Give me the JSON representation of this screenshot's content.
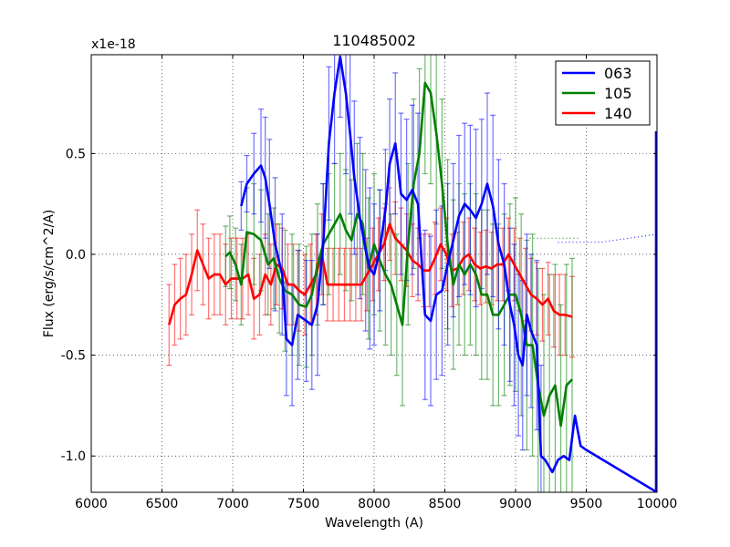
{
  "chart_data": {
    "type": "line",
    "title": "110485002",
    "xlabel": "Wavelength (A)",
    "ylabel": "Flux (erg/s/cm^2/A)",
    "y_offset_label": "x1e-18",
    "xlim": [
      6000,
      10000
    ],
    "ylim": [
      -1.18,
      0.99
    ],
    "xticks": [
      6000,
      6500,
      7000,
      7500,
      8000,
      8500,
      9000,
      9500,
      10000
    ],
    "xtick_labels": [
      "6000",
      "6500",
      "7000",
      "7500",
      "8000",
      "8500",
      "9000",
      "9500",
      "10000"
    ],
    "yticks": [
      0.5,
      0.0,
      -0.5,
      -1.0
    ],
    "ytick_labels": [
      "0.5",
      "0.0",
      "-0.5",
      "-1.0"
    ],
    "grid": true,
    "legend_position": "top-right",
    "series": [
      {
        "name": "063",
        "color": "#0000ff",
        "x": [
          7060,
          7100,
          7150,
          7200,
          7230,
          7260,
          7300,
          7350,
          7380,
          7420,
          7460,
          7520,
          7560,
          7600,
          7640,
          7680,
          7720,
          7760,
          7800,
          7830,
          7860,
          7900,
          7940,
          7970,
          8000,
          8040,
          8080,
          8110,
          8150,
          8190,
          8230,
          8270,
          8310,
          8360,
          8400,
          8440,
          8480,
          8520,
          8560,
          8600,
          8640,
          8680,
          8720,
          8760,
          8800,
          8840,
          8880,
          8920,
          8960,
          8990,
          9020,
          9050,
          9080,
          9110,
          9150,
          9180,
          9210,
          9260,
          9300,
          9340,
          9380,
          9420,
          9460,
          9500,
          10000
        ],
        "y": [
          0.24,
          0.35,
          0.4,
          0.44,
          0.38,
          0.25,
          0.05,
          -0.1,
          -0.42,
          -0.45,
          -0.3,
          -0.33,
          -0.35,
          -0.25,
          0.05,
          0.55,
          0.8,
          0.98,
          0.8,
          0.6,
          0.38,
          0.18,
          0.02,
          -0.07,
          -0.1,
          0.02,
          0.22,
          0.45,
          0.55,
          0.3,
          0.27,
          0.32,
          0.25,
          -0.3,
          -0.33,
          -0.2,
          -0.18,
          -0.05,
          0.07,
          0.19,
          0.25,
          0.22,
          0.18,
          0.25,
          0.35,
          0.24,
          0.05,
          -0.05,
          -0.25,
          -0.35,
          -0.5,
          -0.55,
          -0.3,
          -0.38,
          -0.45,
          -1.0,
          -1.02,
          -1.08,
          -1.02,
          -1.0,
          -1.02,
          -0.8,
          -0.95,
          -0.97,
          -1.18
        ],
        "err": [
          0.12,
          0.14,
          0.2,
          0.28,
          0.3,
          0.32,
          0.33,
          0.3,
          0.28,
          0.3,
          0.32,
          0.3,
          0.32,
          0.35,
          0.3,
          0.38,
          0.35,
          0.3,
          0.4,
          0.4,
          0.38,
          0.4,
          0.4,
          0.4,
          0.35,
          0.3,
          0.3,
          0.32,
          0.35,
          0.4,
          0.4,
          0.42,
          0.45,
          0.42,
          0.42,
          0.42,
          0.42,
          0.4,
          0.38,
          0.4,
          0.4,
          0.42,
          0.44,
          0.42,
          0.45,
          0.45,
          0.42,
          0.4,
          0.38,
          0.4,
          0.4,
          0.42,
          0.4,
          0.38,
          0.42,
          0.45,
          0.0,
          0.0,
          0.0,
          0.0,
          0.0,
          0.0,
          0.0,
          0.0,
          0.0
        ],
        "extension_x": [
          9300,
          9600,
          10000
        ],
        "extension_y": [
          0.06,
          0.06,
          0.1
        ]
      },
      {
        "name": "105",
        "color": "#008000",
        "x": [
          6950,
          6980,
          7020,
          7060,
          7100,
          7150,
          7200,
          7250,
          7290,
          7330,
          7370,
          7420,
          7470,
          7520,
          7560,
          7600,
          7640,
          7680,
          7720,
          7760,
          7800,
          7840,
          7880,
          7920,
          7960,
          8000,
          8040,
          8080,
          8120,
          8160,
          8200,
          8240,
          8280,
          8320,
          8360,
          8400,
          8440,
          8480,
          8520,
          8560,
          8600,
          8640,
          8680,
          8720,
          8760,
          8800,
          8840,
          8880,
          8920,
          8960,
          9000,
          9040,
          9080,
          9120,
          9160,
          9200,
          9240,
          9280,
          9320,
          9360,
          9400
        ],
        "y": [
          -0.01,
          0.01,
          -0.05,
          -0.15,
          0.11,
          0.1,
          0.07,
          -0.05,
          -0.02,
          -0.12,
          -0.18,
          -0.2,
          -0.25,
          -0.26,
          -0.2,
          -0.05,
          0.05,
          0.1,
          0.15,
          0.2,
          0.12,
          0.07,
          0.2,
          0.15,
          -0.07,
          0.05,
          -0.03,
          -0.1,
          -0.15,
          -0.25,
          -0.35,
          0.05,
          0.35,
          0.5,
          0.85,
          0.8,
          0.6,
          0.35,
          0.05,
          -0.15,
          -0.05,
          -0.1,
          -0.05,
          -0.1,
          -0.2,
          -0.2,
          -0.3,
          -0.3,
          -0.25,
          -0.2,
          -0.2,
          -0.3,
          -0.45,
          -0.45,
          -0.65,
          -0.8,
          -0.7,
          -0.65,
          -0.85,
          -0.65,
          -0.62
        ],
        "err": [
          0.15,
          0.18,
          0.18,
          0.2,
          0.22,
          0.25,
          0.25,
          0.25,
          0.25,
          0.27,
          0.3,
          0.3,
          0.3,
          0.3,
          0.3,
          0.3,
          0.3,
          0.3,
          0.3,
          0.3,
          0.3,
          0.3,
          0.35,
          0.35,
          0.35,
          0.35,
          0.35,
          0.35,
          0.35,
          0.35,
          0.4,
          0.4,
          0.42,
          0.42,
          0.45,
          0.45,
          0.45,
          0.42,
          0.42,
          0.42,
          0.4,
          0.4,
          0.4,
          0.4,
          0.42,
          0.42,
          0.45,
          0.45,
          0.45,
          0.45,
          0.48,
          0.5,
          0.52,
          0.55,
          0.58,
          0.6,
          0.6,
          0.6,
          0.6,
          0.6,
          0.6
        ],
        "extension_x": [
          9100,
          9450
        ],
        "extension_y": [
          0.08,
          0.08
        ]
      },
      {
        "name": "140",
        "color": "#ff0000",
        "x": [
          6550,
          6590,
          6630,
          6670,
          6710,
          6750,
          6790,
          6830,
          6870,
          6910,
          6950,
          6990,
          7030,
          7070,
          7110,
          7150,
          7190,
          7230,
          7270,
          7310,
          7350,
          7390,
          7430,
          7470,
          7510,
          7550,
          7590,
          7630,
          7670,
          7710,
          7750,
          7790,
          7830,
          7870,
          7910,
          7950,
          7990,
          8030,
          8070,
          8110,
          8150,
          8190,
          8230,
          8270,
          8310,
          8350,
          8390,
          8430,
          8470,
          8510,
          8550,
          8590,
          8630,
          8670,
          8710,
          8750,
          8790,
          8830,
          8870,
          8910,
          8950,
          8990,
          9030,
          9070,
          9110,
          9150,
          9190,
          9230,
          9270,
          9310,
          9350,
          9400
        ],
        "y": [
          -0.35,
          -0.25,
          -0.22,
          -0.2,
          -0.1,
          0.02,
          -0.05,
          -0.12,
          -0.1,
          -0.1,
          -0.15,
          -0.12,
          -0.12,
          -0.12,
          -0.1,
          -0.22,
          -0.2,
          -0.1,
          -0.15,
          -0.05,
          -0.07,
          -0.15,
          -0.15,
          -0.18,
          -0.2,
          -0.15,
          -0.1,
          0.0,
          -0.15,
          -0.15,
          -0.15,
          -0.15,
          -0.15,
          -0.15,
          -0.15,
          -0.1,
          -0.05,
          0.0,
          0.05,
          0.15,
          0.08,
          0.05,
          0.02,
          -0.03,
          -0.05,
          -0.08,
          -0.08,
          -0.02,
          0.05,
          0.0,
          -0.08,
          -0.07,
          -0.02,
          0.0,
          -0.05,
          -0.07,
          -0.06,
          -0.07,
          -0.05,
          -0.05,
          0.0,
          -0.05,
          -0.1,
          -0.15,
          -0.2,
          -0.22,
          -0.25,
          -0.22,
          -0.28,
          -0.3,
          -0.3,
          -0.31
        ],
        "err": [
          0.2,
          0.2,
          0.2,
          0.2,
          0.2,
          0.2,
          0.2,
          0.2,
          0.2,
          0.2,
          0.2,
          0.2,
          0.2,
          0.2,
          0.2,
          0.2,
          0.2,
          0.2,
          0.2,
          0.2,
          0.2,
          0.2,
          0.2,
          0.2,
          0.2,
          0.2,
          0.2,
          0.2,
          0.18,
          0.18,
          0.18,
          0.18,
          0.18,
          0.18,
          0.18,
          0.18,
          0.18,
          0.18,
          0.18,
          0.18,
          0.18,
          0.18,
          0.18,
          0.18,
          0.18,
          0.18,
          0.18,
          0.18,
          0.18,
          0.18,
          0.18,
          0.18,
          0.18,
          0.18,
          0.18,
          0.18,
          0.18,
          0.18,
          0.18,
          0.18,
          0.18,
          0.18,
          0.18,
          0.18,
          0.18,
          0.18,
          0.18,
          0.18,
          0.18,
          0.2,
          0.2,
          0.2
        ],
        "extension_x": [],
        "extension_y": []
      }
    ]
  }
}
